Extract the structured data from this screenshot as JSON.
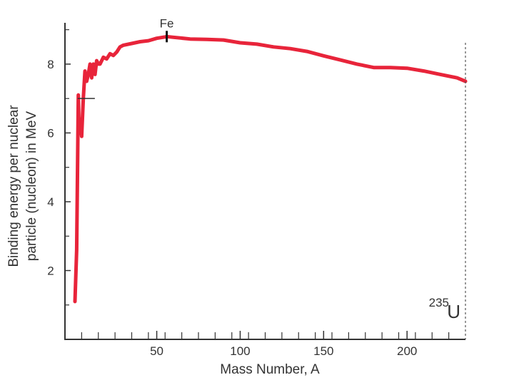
{
  "chart_data": {
    "type": "line",
    "title": "",
    "xlabel": "Mass Number, A",
    "ylabel_lines": [
      "Binding energy per nuclear",
      "particle (nucleon) in MeV"
    ],
    "xlim": [
      -5,
      235
    ],
    "ylim": [
      0,
      9.2
    ],
    "x_tick_labels": [
      {
        "value": 50,
        "label": "50"
      },
      {
        "value": 100,
        "label": "100"
      },
      {
        "value": 150,
        "label": "150"
      },
      {
        "value": 200,
        "label": "200"
      }
    ],
    "x_minor_ticks": [
      5,
      15,
      25,
      35,
      45,
      55,
      65,
      75,
      85,
      95,
      105,
      115,
      125,
      135,
      145,
      155,
      165,
      175,
      185,
      195,
      205,
      215,
      225
    ],
    "y_tick_labels": [
      {
        "value": 2,
        "label": "2"
      },
      {
        "value": 4,
        "label": "4"
      },
      {
        "value": 6,
        "label": "6"
      },
      {
        "value": 8,
        "label": "8"
      }
    ],
    "y_minor_ticks": [
      1,
      3,
      5,
      7,
      9
    ],
    "series": [
      {
        "name": "Binding energy per nucleon",
        "color": "#e8243a",
        "x": [
          1,
          2,
          3,
          3.5,
          4,
          5,
          6,
          7,
          8,
          9,
          10,
          11,
          12,
          13,
          14,
          15,
          16,
          18,
          20,
          22,
          24,
          26,
          28,
          30,
          35,
          40,
          45,
          50,
          55,
          56,
          60,
          70,
          80,
          90,
          100,
          110,
          120,
          130,
          140,
          150,
          160,
          170,
          180,
          190,
          200,
          210,
          220,
          230,
          235
        ],
        "values": [
          1.1,
          2.6,
          7.1,
          6.0,
          6.4,
          5.9,
          7.0,
          7.8,
          7.5,
          7.7,
          8.0,
          7.6,
          8.0,
          7.7,
          8.1,
          8.0,
          8.0,
          8.2,
          8.15,
          8.3,
          8.25,
          8.35,
          8.5,
          8.55,
          8.6,
          8.65,
          8.68,
          8.75,
          8.79,
          8.8,
          8.78,
          8.73,
          8.72,
          8.7,
          8.62,
          8.58,
          8.5,
          8.45,
          8.37,
          8.24,
          8.12,
          8.0,
          7.9,
          7.9,
          7.88,
          7.8,
          7.7,
          7.6,
          7.5
        ]
      }
    ],
    "annotations": {
      "fe_label": "Fe",
      "fe_x": 56,
      "fe_y": 8.8,
      "u_mass": "235",
      "u_symbol": "U",
      "u_x": 235
    },
    "small_marker": {
      "x": 3.5,
      "y": 7.0
    }
  }
}
